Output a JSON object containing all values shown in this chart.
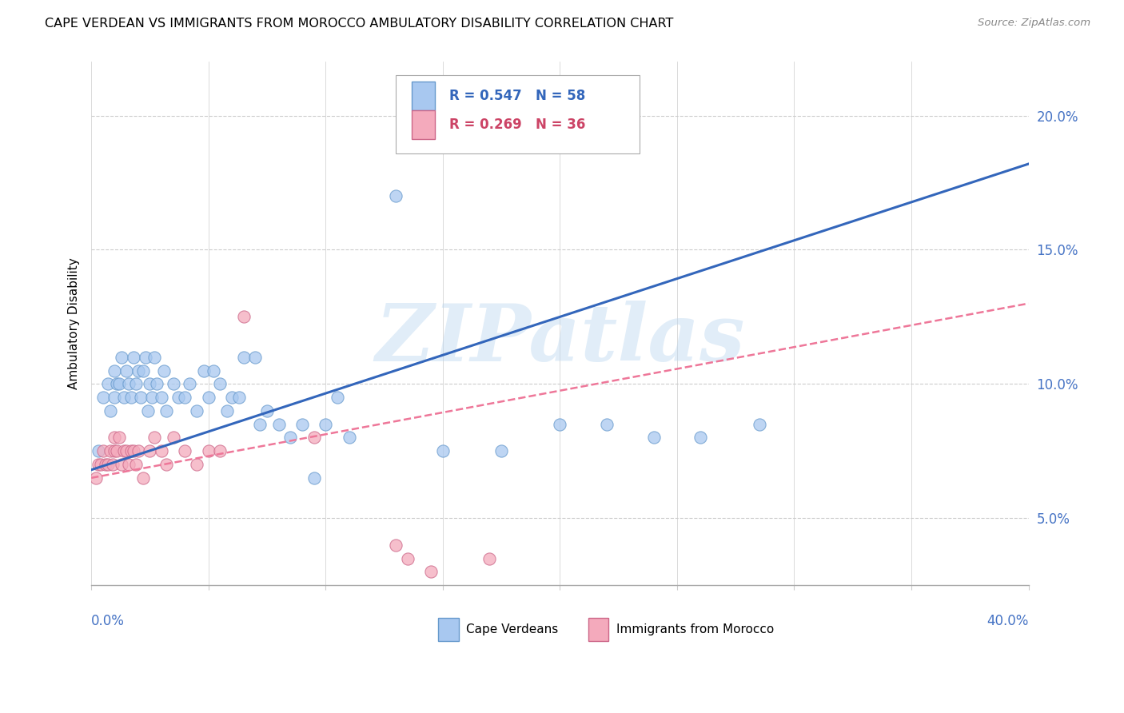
{
  "title": "CAPE VERDEAN VS IMMIGRANTS FROM MOROCCO AMBULATORY DISABILITY CORRELATION CHART",
  "source": "Source: ZipAtlas.com",
  "ylabel": "Ambulatory Disability",
  "legend1_text": "R = 0.547   N = 58",
  "legend2_text": "R = 0.269   N = 36",
  "legend1_label": "Cape Verdeans",
  "legend2_label": "Immigrants from Morocco",
  "blue_scatter_color": "#A8C8F0",
  "blue_scatter_edge": "#6699CC",
  "pink_scatter_color": "#F4AABC",
  "pink_scatter_edge": "#CC6688",
  "blue_line_color": "#3366BB",
  "pink_line_color": "#EE7799",
  "watermark": "ZIPatlas",
  "cape_verdean_x": [
    0.3,
    0.5,
    0.7,
    0.8,
    1.0,
    1.0,
    1.1,
    1.2,
    1.3,
    1.4,
    1.5,
    1.6,
    1.7,
    1.8,
    1.9,
    2.0,
    2.1,
    2.2,
    2.3,
    2.4,
    2.5,
    2.6,
    2.7,
    2.8,
    3.0,
    3.1,
    3.2,
    3.5,
    3.7,
    4.0,
    4.2,
    4.5,
    4.8,
    5.0,
    5.2,
    5.5,
    5.8,
    6.0,
    6.3,
    6.5,
    7.0,
    7.2,
    7.5,
    8.0,
    8.5,
    9.0,
    9.5,
    10.0,
    10.5,
    11.0,
    13.0,
    15.0,
    17.5,
    20.0,
    22.0,
    24.0,
    26.0,
    28.5
  ],
  "cape_verdean_y": [
    7.5,
    9.5,
    10.0,
    9.0,
    10.5,
    9.5,
    10.0,
    10.0,
    11.0,
    9.5,
    10.5,
    10.0,
    9.5,
    11.0,
    10.0,
    10.5,
    9.5,
    10.5,
    11.0,
    9.0,
    10.0,
    9.5,
    11.0,
    10.0,
    9.5,
    10.5,
    9.0,
    10.0,
    9.5,
    9.5,
    10.0,
    9.0,
    10.5,
    9.5,
    10.5,
    10.0,
    9.0,
    9.5,
    9.5,
    11.0,
    11.0,
    8.5,
    9.0,
    8.5,
    8.0,
    8.5,
    6.5,
    8.5,
    9.5,
    8.0,
    17.0,
    7.5,
    7.5,
    8.5,
    8.5,
    8.0,
    8.0,
    8.5
  ],
  "morocco_x": [
    0.2,
    0.3,
    0.4,
    0.5,
    0.6,
    0.7,
    0.8,
    0.9,
    1.0,
    1.0,
    1.1,
    1.2,
    1.3,
    1.4,
    1.5,
    1.6,
    1.7,
    1.8,
    1.9,
    2.0,
    2.2,
    2.5,
    2.7,
    3.0,
    3.2,
    3.5,
    4.0,
    4.5,
    5.0,
    5.5,
    6.5,
    9.5,
    13.0,
    13.5,
    14.5,
    17.0
  ],
  "morocco_y": [
    6.5,
    7.0,
    7.0,
    7.5,
    7.0,
    7.0,
    7.5,
    7.0,
    8.0,
    7.5,
    7.5,
    8.0,
    7.0,
    7.5,
    7.5,
    7.0,
    7.5,
    7.5,
    7.0,
    7.5,
    6.5,
    7.5,
    8.0,
    7.5,
    7.0,
    8.0,
    7.5,
    7.0,
    7.5,
    7.5,
    12.5,
    8.0,
    4.0,
    3.5,
    3.0,
    3.5
  ],
  "xlim": [
    0,
    40
  ],
  "ylim": [
    2.5,
    22.0
  ],
  "ytick_vals": [
    5,
    10,
    15,
    20
  ],
  "ytick_labels": [
    "5.0%",
    "10.0%",
    "15.0%",
    "20.0%"
  ],
  "blue_line_x0": 0,
  "blue_line_y0": 6.8,
  "blue_line_x1": 40,
  "blue_line_y1": 18.2,
  "pink_line_x0": 0,
  "pink_line_y0": 6.5,
  "pink_line_x1": 40,
  "pink_line_y1": 13.0
}
